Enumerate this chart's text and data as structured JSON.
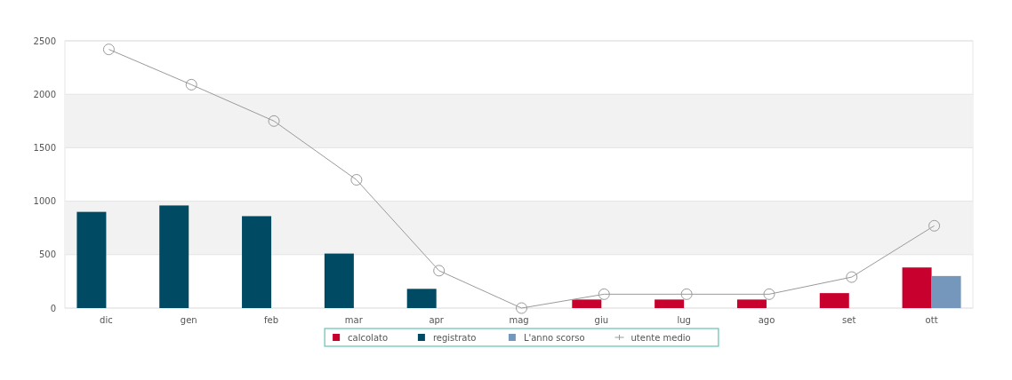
{
  "chart_data": {
    "type": "bar",
    "categories": [
      "dic",
      "gen",
      "feb",
      "mar",
      "apr",
      "mag",
      "giu",
      "lug",
      "ago",
      "set",
      "ott"
    ],
    "series": [
      {
        "name": "calcolato",
        "color": "#c8002d",
        "values": [
          null,
          null,
          null,
          null,
          null,
          null,
          80,
          80,
          80,
          140,
          380
        ]
      },
      {
        "name": "registrato",
        "color": "#004a63",
        "values": [
          900,
          960,
          860,
          510,
          180,
          null,
          null,
          null,
          null,
          null,
          null
        ]
      },
      {
        "name": "L'anno scorso",
        "color": "#7597bb",
        "values": [
          null,
          null,
          null,
          null,
          null,
          null,
          null,
          null,
          null,
          null,
          300
        ]
      },
      {
        "name": "utente medio",
        "type": "line",
        "color": "#9a9a9a",
        "marker": "circle",
        "values": [
          2420,
          2090,
          1750,
          1200,
          350,
          0,
          130,
          130,
          130,
          290,
          770
        ]
      }
    ],
    "ylim": [
      0,
      2500
    ],
    "yticks": [
      0,
      500,
      1000,
      1500,
      2000,
      2500
    ],
    "grid": "y",
    "legend": "bottom"
  }
}
